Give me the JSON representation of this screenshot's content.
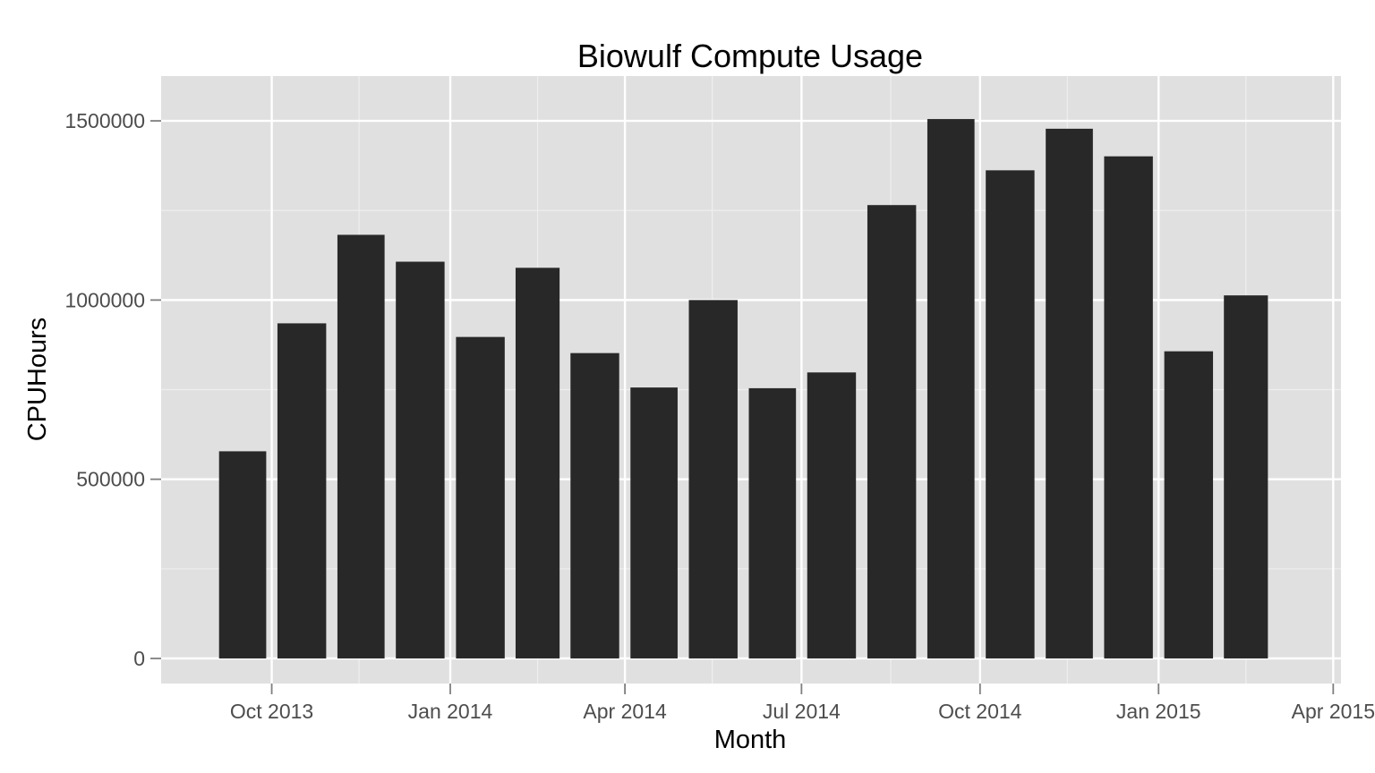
{
  "chart_data": {
    "type": "bar",
    "title": "Biowulf Compute Usage",
    "xlabel": "Month",
    "ylabel": "CPUHours",
    "x_start": "2013-08-05",
    "x_end": "2015-04-05",
    "ylim": [
      -70000,
      1625000
    ],
    "y_ticks": [
      0,
      500000,
      1000000,
      1500000
    ],
    "y_tick_labels": [
      "0",
      "500000",
      "1000000",
      "1500000"
    ],
    "x_ticks": [
      {
        "date": "2013-10-01",
        "label": "Oct 2013"
      },
      {
        "date": "2014-01-01",
        "label": "Jan 2014"
      },
      {
        "date": "2014-04-01",
        "label": "Apr 2014"
      },
      {
        "date": "2014-07-01",
        "label": "Jul 2014"
      },
      {
        "date": "2014-10-01",
        "label": "Oct 2014"
      },
      {
        "date": "2015-01-01",
        "label": "Jan 2015"
      },
      {
        "date": "2015-04-01",
        "label": "Apr 2015"
      }
    ],
    "x_minor": [
      "2013-11-15",
      "2014-02-15",
      "2014-05-16",
      "2014-08-16",
      "2014-11-15",
      "2015-02-15"
    ],
    "bars": [
      {
        "month": "2013-09",
        "value": 578000
      },
      {
        "month": "2013-10",
        "value": 935000
      },
      {
        "month": "2013-11",
        "value": 1182000
      },
      {
        "month": "2013-12",
        "value": 1107000
      },
      {
        "month": "2014-01",
        "value": 897000
      },
      {
        "month": "2014-02",
        "value": 1090000
      },
      {
        "month": "2014-03",
        "value": 852000
      },
      {
        "month": "2014-04",
        "value": 756000
      },
      {
        "month": "2014-05",
        "value": 1000000
      },
      {
        "month": "2014-06",
        "value": 754000
      },
      {
        "month": "2014-07",
        "value": 798000
      },
      {
        "month": "2014-08",
        "value": 1265000
      },
      {
        "month": "2014-09",
        "value": 1505000
      },
      {
        "month": "2014-10",
        "value": 1362000
      },
      {
        "month": "2014-11",
        "value": 1478000
      },
      {
        "month": "2014-12",
        "value": 1401000
      },
      {
        "month": "2015-01",
        "value": 857000
      },
      {
        "month": "2015-02",
        "value": 1013000
      }
    ],
    "grid": true,
    "legend": "none"
  },
  "colors": {
    "panel": "#e0e0e0",
    "grid_major": "#ffffff",
    "grid_minor": "#eeeeee",
    "bar": "#282828",
    "tick": "#7f7f7f"
  }
}
